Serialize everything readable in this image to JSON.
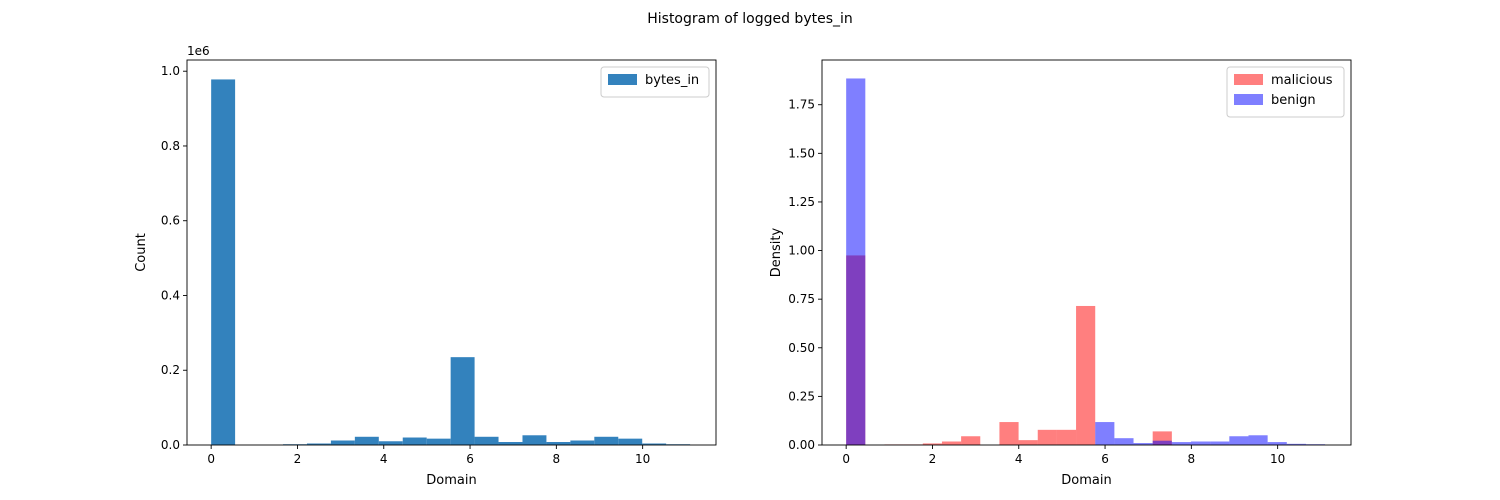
{
  "figure": {
    "title": "Histogram of logged bytes_in"
  },
  "chart_data": [
    {
      "type": "bar",
      "subtype": "histogram",
      "xlabel": "Domain",
      "ylabel": "Count",
      "offset_label": "1e6",
      "xlim": [
        -0.56,
        11.7
      ],
      "ylim": [
        0,
        1.03
      ],
      "xticks": [
        0,
        2,
        4,
        6,
        8,
        10
      ],
      "yticks": [
        0.0,
        0.2,
        0.4,
        0.6,
        0.8,
        1.0
      ],
      "xtick_labels": [
        "0",
        "2",
        "4",
        "6",
        "8",
        "10"
      ],
      "ytick_labels": [
        "0.0",
        "0.2",
        "0.4",
        "0.6",
        "0.8",
        "1.0"
      ],
      "legend_position": "top-right",
      "bin_edges": [
        0.0,
        0.555,
        1.11,
        1.665,
        2.22,
        2.775,
        3.33,
        3.885,
        4.44,
        4.995,
        5.55,
        6.105,
        6.66,
        7.215,
        7.77,
        8.325,
        8.88,
        9.435,
        9.99,
        10.545,
        11.1
      ],
      "series": [
        {
          "name": "bytes_in",
          "color": "#3382bd",
          "opacity": 1,
          "values": [
            0.978,
            0.0,
            0.0,
            0.002,
            0.004,
            0.012,
            0.022,
            0.01,
            0.02,
            0.017,
            0.235,
            0.022,
            0.008,
            0.026,
            0.008,
            0.012,
            0.022,
            0.017,
            0.004,
            0.002
          ]
        }
      ]
    },
    {
      "type": "bar",
      "subtype": "histogram",
      "xlabel": "Domain",
      "ylabel": "Density",
      "xlim": [
        -0.56,
        11.7
      ],
      "ylim": [
        0,
        1.98
      ],
      "xticks": [
        0,
        2,
        4,
        6,
        8,
        10
      ],
      "yticks": [
        0.0,
        0.25,
        0.5,
        0.75,
        1.0,
        1.25,
        1.5,
        1.75
      ],
      "xtick_labels": [
        "0",
        "2",
        "4",
        "6",
        "8",
        "10"
      ],
      "ytick_labels": [
        "0.00",
        "0.25",
        "0.50",
        "0.75",
        "1.00",
        "1.25",
        "1.50",
        "1.75"
      ],
      "legend_position": "top-right",
      "bin_edges": [
        0.0,
        0.444,
        0.888,
        1.332,
        1.776,
        2.22,
        2.664,
        3.108,
        3.552,
        3.996,
        4.44,
        4.884,
        5.328,
        5.772,
        6.216,
        6.66,
        7.104,
        7.548,
        7.992,
        8.436,
        8.88,
        9.324,
        9.768,
        10.212,
        10.656,
        11.1
      ],
      "series": [
        {
          "name": "malicious",
          "color": "#ff0000",
          "opacity": 0.5,
          "values": [
            0.975,
            0.0,
            0.003,
            0.003,
            0.008,
            0.018,
            0.045,
            0.0,
            0.118,
            0.025,
            0.078,
            0.078,
            0.715,
            0.0,
            0.0,
            0.0,
            0.07,
            0.0,
            0.0,
            0.0,
            0.0,
            0.0,
            0.0,
            0.0,
            0.0
          ]
        },
        {
          "name": "benign",
          "color": "#0000ff",
          "opacity": 0.5,
          "values": [
            1.885,
            0.0,
            0.0,
            0.0,
            0.0,
            0.0,
            0.0,
            0.0,
            0.0,
            0.0,
            0.0,
            0.0,
            0.0,
            0.118,
            0.035,
            0.01,
            0.022,
            0.015,
            0.018,
            0.018,
            0.045,
            0.05,
            0.015,
            0.006,
            0.004
          ]
        }
      ]
    }
  ]
}
